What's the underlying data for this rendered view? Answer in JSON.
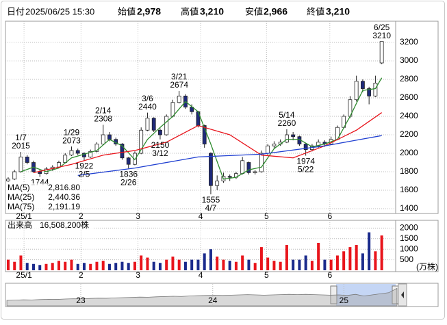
{
  "header": {
    "date_label": "日付",
    "datetime": "2025/06/25 15:30",
    "items": [
      {
        "label": "始値",
        "value": "2,978",
        "color": "#000000"
      },
      {
        "label": "高値",
        "value": "3,210",
        "color": "#e8141b"
      },
      {
        "label": "安値",
        "value": "2,966",
        "color": "#1b8a1b"
      },
      {
        "label": "終値",
        "value": "3,210",
        "color": "#000000"
      }
    ]
  },
  "chart_data": [
    {
      "type": "candlestick",
      "ylim": [
        1348,
        3430
      ],
      "yticks": [
        1400,
        1600,
        1800,
        2000,
        2200,
        2400,
        2600,
        2800,
        3000,
        3200
      ],
      "xlim": [
        -0.43,
        61.2
      ],
      "xticks": [
        {
          "value": 2.5,
          "label": "25/1"
        },
        {
          "value": 11.5,
          "label": "2"
        },
        {
          "value": 20.5,
          "label": "3"
        },
        {
          "value": 30.4,
          "label": "4"
        },
        {
          "value": 40.8,
          "label": "5"
        },
        {
          "value": 50.8,
          "label": "6"
        }
      ],
      "grid": true,
      "up_color": "#ffffff",
      "down_color": "#1f2a7a",
      "open": [
        1700,
        1720,
        1800,
        1960,
        1900,
        1800,
        1780,
        1830,
        1850,
        1900,
        1980,
        2030,
        2000,
        1960,
        2020,
        2100,
        2200,
        2150,
        2100,
        1950,
        1880,
        2000,
        2250,
        2380,
        2250,
        2200,
        2400,
        2550,
        2620,
        2500,
        2450,
        2300,
        2000,
        1650,
        1700,
        1750,
        1740,
        1780,
        1900,
        1790,
        1800,
        2000,
        2080,
        2100,
        2120,
        2200,
        2180,
        2100,
        2040,
        2080,
        2120,
        2100,
        2150,
        2280,
        2400,
        2580,
        2780,
        2700,
        2620,
        2978
      ],
      "high": [
        1740,
        1820,
        2015,
        1980,
        1920,
        1820,
        1850,
        1870,
        1920,
        2000,
        2073,
        2050,
        2010,
        2040,
        2120,
        2308,
        2230,
        2170,
        2110,
        1960,
        2020,
        2280,
        2440,
        2390,
        2270,
        2420,
        2580,
        2674,
        2640,
        2530,
        2460,
        2310,
        2010,
        1760,
        1790,
        1770,
        1800,
        1960,
        1910,
        1820,
        2030,
        2100,
        2130,
        2150,
        2260,
        2230,
        2190,
        2110,
        2100,
        2150,
        2140,
        2180,
        2300,
        2420,
        2620,
        2840,
        2800,
        2720,
        2840,
        3210
      ],
      "low": [
        1690,
        1710,
        1790,
        1880,
        1790,
        1744,
        1770,
        1810,
        1840,
        1890,
        1970,
        1980,
        1922,
        1950,
        2010,
        2090,
        2130,
        2080,
        1930,
        1836,
        1870,
        1990,
        2240,
        2230,
        2150,
        2190,
        2390,
        2540,
        2480,
        2420,
        2280,
        2060,
        1555,
        1600,
        1680,
        1700,
        1720,
        1770,
        1770,
        1770,
        1790,
        1980,
        2050,
        2080,
        2110,
        2140,
        2080,
        1974,
        2020,
        2060,
        2070,
        2090,
        2140,
        2270,
        2380,
        2560,
        2660,
        2530,
        2610,
        2966
      ],
      "close": [
        1720,
        1800,
        1960,
        1900,
        1800,
        1780,
        1830,
        1850,
        1900,
        1980,
        2030,
        2000,
        1960,
        2020,
        2100,
        2200,
        2150,
        2100,
        1950,
        1880,
        2000,
        2250,
        2380,
        2250,
        2200,
        2400,
        2550,
        2620,
        2500,
        2450,
        2300,
        2100,
        1650,
        1700,
        1750,
        1740,
        1780,
        1920,
        1790,
        1800,
        2000,
        2080,
        2100,
        2120,
        2200,
        2180,
        2100,
        2040,
        2080,
        2120,
        2100,
        2150,
        2280,
        2400,
        2580,
        2780,
        2700,
        2620,
        2760,
        3210
      ],
      "series": [
        {
          "name": "MA(5)",
          "color": "#2e8b2e",
          "x": [
            2,
            4,
            6,
            8,
            10,
            12,
            14,
            16,
            18,
            20,
            22,
            24,
            26,
            28,
            30,
            32,
            34,
            36,
            38,
            40,
            42,
            44,
            46,
            48,
            50,
            52,
            54,
            56,
            58,
            59
          ],
          "values": [
            1800,
            1850,
            1800,
            1840,
            1950,
            1990,
            2030,
            2150,
            2080,
            1930,
            2150,
            2280,
            2400,
            2560,
            2450,
            2100,
            1720,
            1740,
            1820,
            1850,
            2050,
            2150,
            2150,
            2070,
            2100,
            2150,
            2400,
            2680,
            2700,
            2816.8
          ],
          "last_value_label": "2,816.80"
        },
        {
          "name": "MA(25)",
          "color": "#e8141b",
          "x": [
            4,
            10,
            15,
            20,
            25,
            30,
            35,
            40,
            45,
            50,
            55,
            59
          ],
          "values": [
            1790,
            1880,
            1980,
            2030,
            2120,
            2300,
            2200,
            1980,
            1950,
            2080,
            2250,
            2440.36
          ],
          "last_value_label": "2,440.36"
        },
        {
          "name": "MA(75)",
          "color": "#1f3fd1",
          "x": [
            11,
            20,
            30,
            40,
            50,
            59
          ],
          "values": [
            1760,
            1840,
            1960,
            1990,
            2080,
            2191.19
          ],
          "last_value_label": "2,191.19"
        }
      ],
      "annotations": [
        {
          "date": "1/7",
          "price": 2015
        },
        {
          "price": 1744
        },
        {
          "date": "1/29",
          "price": 2073
        },
        {
          "date": "2/5",
          "price": 1922
        },
        {
          "date": "2/14",
          "price": 2308
        },
        {
          "date": "2/26",
          "price": 1836
        },
        {
          "date": "3/6",
          "price": 2440
        },
        {
          "date": "3/12",
          "price": 2150
        },
        {
          "date": "3/21",
          "price": 2674
        },
        {
          "date": "4/7",
          "price": 1555
        },
        {
          "date": "5/14",
          "price": 2260
        },
        {
          "date": "5/22",
          "price": 1974
        },
        {
          "date": "6/25",
          "price": 3210
        }
      ]
    },
    {
      "type": "bar",
      "title": "出来高",
      "subtitle": "16,508,200株",
      "unit": "(万株)",
      "ylim": [
        0,
        2370
      ],
      "yticks": [
        500,
        1000,
        1500,
        2000
      ],
      "xlim": [
        -0.43,
        61.2
      ],
      "xticks": [
        {
          "value": 2.5,
          "label": "25/1"
        },
        {
          "value": 11.5,
          "label": "2"
        },
        {
          "value": 20.5,
          "label": "3"
        },
        {
          "value": 30.4,
          "label": "4"
        },
        {
          "value": 40.8,
          "label": "5"
        },
        {
          "value": 50.8,
          "label": "6"
        }
      ],
      "up_color": "#e8141b",
      "down_color": "#1a2a8c",
      "values": [
        500,
        400,
        700,
        350,
        300,
        250,
        300,
        350,
        450,
        400,
        500,
        300,
        350,
        300,
        400,
        450,
        300,
        350,
        400,
        350,
        400,
        700,
        600,
        400,
        350,
        500,
        650,
        500,
        400,
        500,
        500,
        800,
        1000,
        650,
        500,
        450,
        400,
        700,
        500,
        350,
        1100,
        600,
        450,
        400,
        1200,
        500,
        500,
        700,
        450,
        1300,
        500,
        500,
        700,
        900,
        1100,
        1200,
        800,
        1800,
        900,
        1650
      ]
    },
    {
      "type": "area",
      "xlim": [
        -0.17,
        47.17
      ],
      "ylim": [
        0,
        4000
      ],
      "color": "#a9a9a9",
      "xticks": [
        {
          "value": 8.9,
          "label": "23"
        },
        {
          "value": 24.8,
          "label": "24"
        },
        {
          "value": 40.6,
          "label": "25"
        }
      ],
      "values": [
        1000,
        1050,
        1100,
        1080,
        1150,
        1200,
        1180,
        1250,
        1300,
        1280,
        1350,
        1400,
        1380,
        1450,
        1500,
        1550,
        1600,
        1580,
        1650,
        1700,
        1750,
        1720,
        1800,
        1850,
        1900,
        1950,
        1900,
        1950,
        2000,
        2050,
        2000,
        1950,
        2000,
        2050,
        2100,
        2050,
        2100,
        2050,
        2000,
        1950,
        2000,
        1900,
        2100,
        1800,
        2000,
        2200,
        2400,
        3200
      ]
    }
  ]
}
